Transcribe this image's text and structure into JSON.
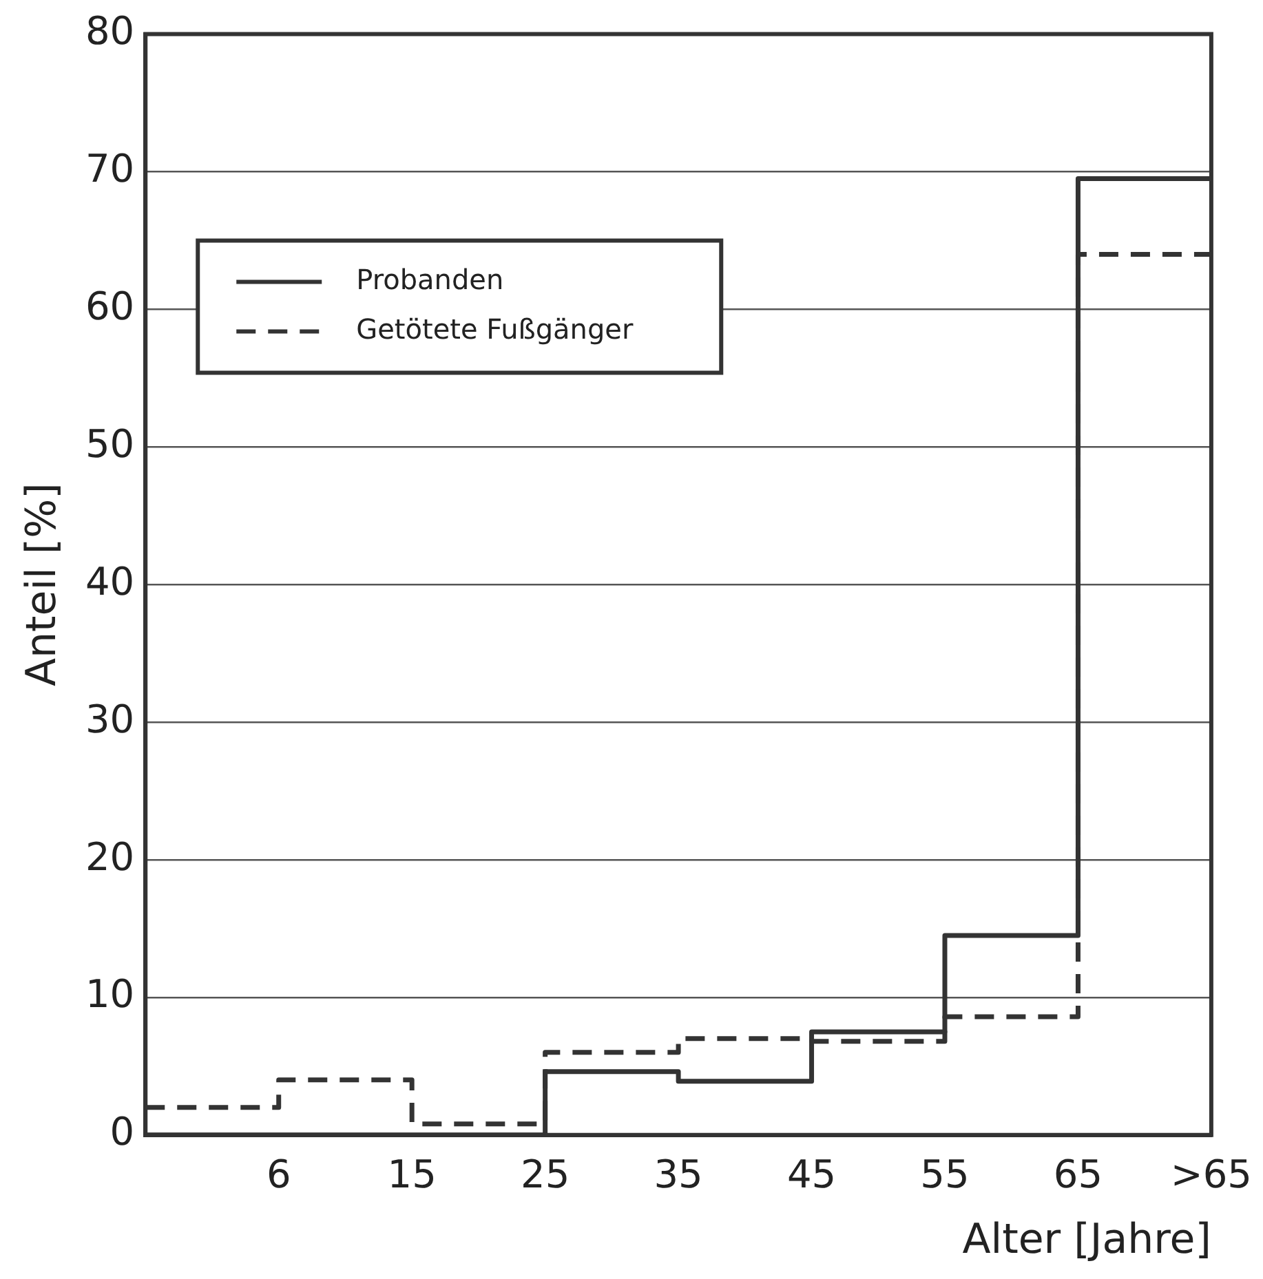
{
  "chart_data": {
    "type": "step",
    "xlabel": "Alter [Jahre]",
    "ylabel": "Anteil [%]",
    "categories": [
      null,
      "6",
      "15",
      "25",
      "35",
      "45",
      "55",
      "65",
      ">65"
    ],
    "ylim": [
      0,
      80
    ],
    "yticks": [
      0,
      10,
      20,
      30,
      40,
      50,
      60,
      70,
      80
    ],
    "grid": "y",
    "legend": "top left",
    "series": [
      {
        "name": "Probanden",
        "color": "#333333",
        "line_style": "solid",
        "values": [
          0,
          0,
          0,
          4.6,
          3.9,
          7.5,
          14.5,
          69.5,
          69.5
        ]
      },
      {
        "name": "Getötete Fußgänger",
        "color": "#333333",
        "line_style": "dashed",
        "values": [
          2,
          4,
          0.8,
          6,
          7,
          6.8,
          8.6,
          64,
          64
        ]
      }
    ]
  }
}
